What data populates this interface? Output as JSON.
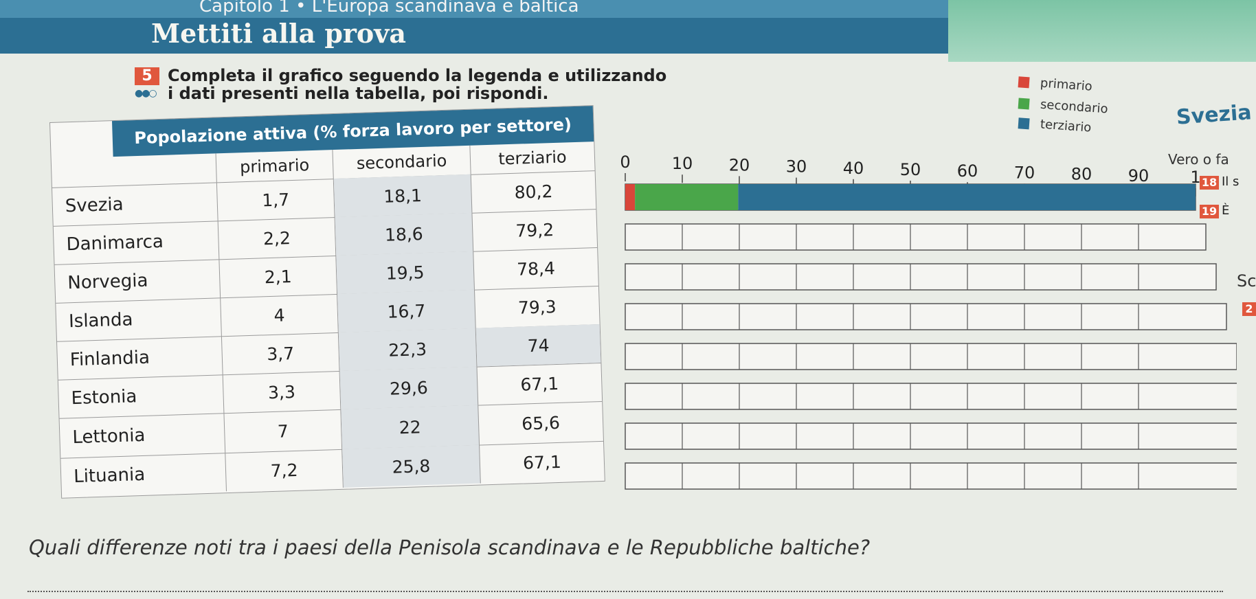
{
  "header": {
    "chapter": "Capitolo 1 • L'Europa scandinava e baltica",
    "title": "Mettiti alla prova"
  },
  "exercise": {
    "number": "5",
    "text_line1": "Completa il grafico seguendo la legenda e utilizzando",
    "text_line2": "i dati presenti nella tabella, poi rispondi.",
    "difficulty_dots": "●●○"
  },
  "legend": [
    {
      "label": "primario",
      "color": "#d9463a"
    },
    {
      "label": "secondario",
      "color": "#4aa64a"
    },
    {
      "label": "terziario",
      "color": "#2c6f93"
    }
  ],
  "table": {
    "caption": "Popolazione attiva (% forza lavoro per settore)",
    "headers": [
      "",
      "primario",
      "secondario",
      "terziario"
    ],
    "rows": [
      [
        "Svezia",
        "1,7",
        "18,1",
        "80,2"
      ],
      [
        "Danimarca",
        "2,2",
        "18,6",
        "79,2"
      ],
      [
        "Norvegia",
        "2,1",
        "19,5",
        "78,4"
      ],
      [
        "Islanda",
        "4",
        "16,7",
        "79,3"
      ],
      [
        "Finlandia",
        "3,7",
        "22,3",
        "74"
      ],
      [
        "Estonia",
        "3,3",
        "29,6",
        "67,1"
      ],
      [
        "Lettonia",
        "7",
        "22",
        "65,6"
      ],
      [
        "Lituania",
        "7,2",
        "25,8",
        "67,1"
      ]
    ]
  },
  "chart_data": {
    "type": "bar",
    "orientation": "horizontal-stacked",
    "x_ticks": [
      "0",
      "10",
      "20",
      "30",
      "40",
      "50",
      "60",
      "70",
      "80",
      "90",
      "1"
    ],
    "xlim": [
      0,
      100
    ],
    "rows": 8,
    "filled_row": {
      "primario": 1.7,
      "secondario": 18.1,
      "terziario": 80.2
    },
    "series": [
      {
        "name": "primario",
        "values": [
          1.7
        ]
      },
      {
        "name": "secondario",
        "values": [
          18.1
        ]
      },
      {
        "name": "terziario",
        "values": [
          80.2
        ]
      }
    ]
  },
  "side": {
    "country": "Svezia",
    "vero_falso": "Vero o fa",
    "item18_num": "18",
    "item18_text": "Il s",
    "item19_num": "19",
    "item19_text": "È",
    "sc": "Sc",
    "item_2_num": "2"
  },
  "question": "Quali differenze noti tra i paesi della Penisola scandinava e le Repubbliche baltiche?"
}
